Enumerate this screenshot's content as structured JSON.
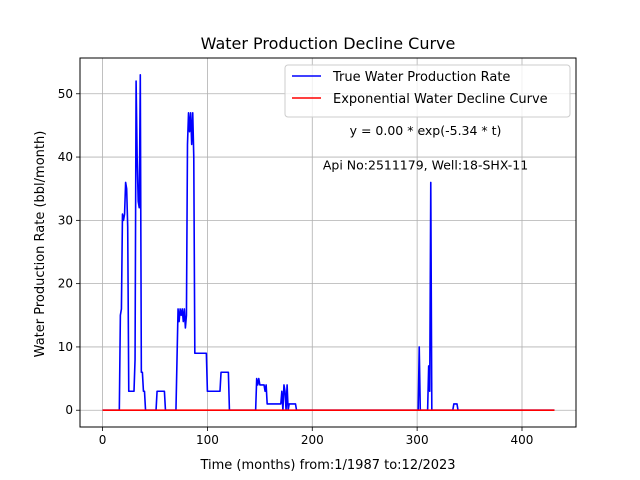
{
  "chart_data": {
    "type": "line",
    "title": "Water Production Decline Curve",
    "xlabel": "Time (months) from:1/1987 to:12/2023",
    "ylabel": "Water Production Rate (bbl/month)",
    "xlim": [
      -21.5,
      451.5
    ],
    "ylim": [
      -2.65,
      55.65
    ],
    "xticks": [
      0,
      100,
      200,
      300,
      400
    ],
    "yticks": [
      0,
      10,
      20,
      30,
      40,
      50
    ],
    "grid": true,
    "legend_position": "top-right",
    "annotations": [
      {
        "text": "y = 0.00 * exp(-5.34 * t)",
        "x": 308,
        "y": 43.5
      },
      {
        "text": "Api No:2511179, Well:18-SHX-11",
        "x": 308,
        "y": 38.0
      }
    ],
    "series": [
      {
        "name": "True Water Production Rate",
        "color": "#0000ff",
        "points": [
          [
            0,
            0
          ],
          [
            16,
            0
          ],
          [
            17,
            15
          ],
          [
            18,
            16
          ],
          [
            19,
            31
          ],
          [
            20,
            30
          ],
          [
            21,
            31
          ],
          [
            22,
            36
          ],
          [
            23,
            35
          ],
          [
            24,
            29
          ],
          [
            25,
            3
          ],
          [
            30,
            3
          ],
          [
            31,
            8
          ],
          [
            32,
            52
          ],
          [
            33,
            40
          ],
          [
            34,
            33
          ],
          [
            35,
            32
          ],
          [
            36,
            53
          ],
          [
            37,
            6
          ],
          [
            38,
            6
          ],
          [
            39,
            3
          ],
          [
            40,
            3
          ],
          [
            41,
            0
          ],
          [
            51,
            0
          ],
          [
            52,
            3
          ],
          [
            59,
            3
          ],
          [
            60,
            0
          ],
          [
            70,
            0
          ],
          [
            71,
            8
          ],
          [
            72,
            16
          ],
          [
            73,
            14
          ],
          [
            74,
            16
          ],
          [
            75,
            15
          ],
          [
            76,
            16
          ],
          [
            77,
            14
          ],
          [
            78,
            16
          ],
          [
            79,
            13
          ],
          [
            80,
            15
          ],
          [
            81,
            42
          ],
          [
            82,
            47
          ],
          [
            83,
            44
          ],
          [
            84,
            47
          ],
          [
            85,
            42
          ],
          [
            86,
            47
          ],
          [
            87,
            40
          ],
          [
            88,
            9
          ],
          [
            99,
            9
          ],
          [
            100,
            3
          ],
          [
            112,
            3
          ],
          [
            113,
            6
          ],
          [
            120,
            6
          ],
          [
            121,
            0
          ],
          [
            146,
            0
          ],
          [
            147,
            5
          ],
          [
            148,
            4
          ],
          [
            149,
            5
          ],
          [
            150,
            4
          ],
          [
            154,
            4
          ],
          [
            155,
            3
          ],
          [
            156,
            4
          ],
          [
            157,
            1
          ],
          [
            170,
            1
          ],
          [
            171,
            3
          ],
          [
            172,
            0
          ],
          [
            173,
            4
          ],
          [
            174,
            3
          ],
          [
            175,
            0
          ],
          [
            176,
            4
          ],
          [
            177,
            0
          ],
          [
            178,
            1
          ],
          [
            184,
            1
          ],
          [
            185,
            0
          ],
          [
            301,
            0
          ],
          [
            302,
            10
          ],
          [
            303,
            0
          ],
          [
            310,
            0
          ],
          [
            311,
            7
          ],
          [
            312,
            3
          ],
          [
            313,
            36
          ],
          [
            314,
            0
          ],
          [
            334,
            0
          ],
          [
            335,
            1
          ],
          [
            338,
            1
          ],
          [
            339,
            0
          ],
          [
            431,
            0
          ]
        ]
      },
      {
        "name": "Exponential Water Decline Curve",
        "color": "#ff0000",
        "points": [
          [
            0,
            0
          ],
          [
            431,
            0
          ]
        ]
      }
    ]
  }
}
